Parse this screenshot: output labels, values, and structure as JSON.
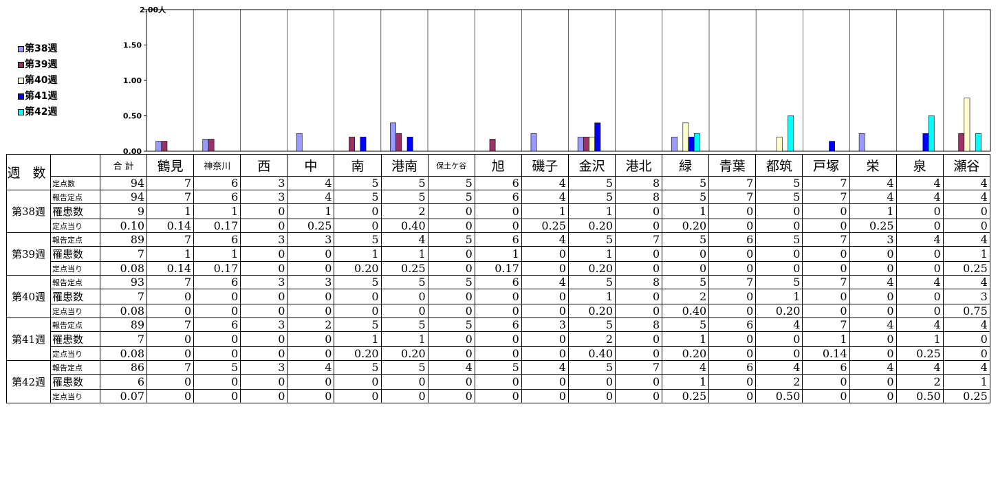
{
  "chart_data": {
    "type": "bar",
    "categories": [
      "鶴見",
      "神奈川",
      "西",
      "中",
      "南",
      "港南",
      "保土ケ谷",
      "旭",
      "磯子",
      "金沢",
      "港北",
      "緑",
      "青葉",
      "都筑",
      "戸塚",
      "栄",
      "泉",
      "瀬谷"
    ],
    "series": [
      {
        "name": "■第38週",
        "values": [
          0.14,
          0.17,
          0,
          0.25,
          0,
          0.4,
          0,
          0,
          0.25,
          0.2,
          0,
          0.2,
          0,
          0,
          0,
          0.25,
          0,
          0
        ]
      },
      {
        "name": "■第39週",
        "values": [
          0.14,
          0.17,
          0,
          0,
          0.2,
          0.25,
          0,
          0.17,
          0,
          0.2,
          0,
          0,
          0,
          0,
          0,
          0,
          0,
          0.25
        ]
      },
      {
        "name": "□第40週",
        "values": [
          0,
          0,
          0,
          0,
          0,
          0,
          0,
          0,
          0,
          0.2,
          0,
          0.4,
          0,
          0.2,
          0,
          0,
          0,
          0.75
        ]
      },
      {
        "name": "■第41週",
        "values": [
          0,
          0,
          0,
          0,
          0.2,
          0.2,
          0,
          0,
          0,
          0.4,
          0,
          0.2,
          0,
          0,
          0.14,
          0,
          0.25,
          0
        ]
      },
      {
        "name": "□第42週",
        "values": [
          0,
          0,
          0,
          0,
          0,
          0,
          0,
          0,
          0,
          0,
          0,
          0.25,
          0,
          0.5,
          0,
          0,
          0.5,
          0.25
        ]
      }
    ],
    "colors": [
      "#9999ff",
      "#993366",
      "#ffffcc",
      "#0000ff",
      "#00ffff"
    ],
    "ylim": [
      0,
      2.0
    ],
    "yticks": [
      "0.00",
      "0.50",
      "1.00",
      "1.50",
      "2.00"
    ],
    "unit": "人",
    "grid": "vertical-category-separators",
    "legend_placement": "left"
  },
  "table": {
    "corner": "週 数",
    "header": [
      "合 計",
      "鶴見",
      "神奈川",
      "西",
      "中",
      "南",
      "港南",
      "保土ケ谷",
      "旭",
      "磯子",
      "金沢",
      "港北",
      "緑",
      "青葉",
      "都筑",
      "戸塚",
      "栄",
      "泉",
      "瀬谷"
    ],
    "fixed_label": "定点数",
    "fixed_values": [
      "94",
      "7",
      "6",
      "3",
      "4",
      "5",
      "5",
      "5",
      "6",
      "4",
      "5",
      "8",
      "5",
      "7",
      "5",
      "7",
      "4",
      "4",
      "4"
    ],
    "row_labels": [
      "報告定点",
      "罹患数",
      "定点当り"
    ],
    "weeks": [
      {
        "label": "第38週",
        "rows": [
          [
            "94",
            "7",
            "6",
            "3",
            "4",
            "5",
            "5",
            "5",
            "6",
            "4",
            "5",
            "8",
            "5",
            "7",
            "5",
            "7",
            "4",
            "4",
            "4"
          ],
          [
            "9",
            "1",
            "1",
            "0",
            "1",
            "0",
            "2",
            "0",
            "0",
            "1",
            "1",
            "0",
            "1",
            "0",
            "0",
            "0",
            "1",
            "0",
            "0"
          ],
          [
            "0.10",
            "0.14",
            "0.17",
            "0",
            "0.25",
            "0",
            "0.40",
            "0",
            "0",
            "0.25",
            "0.20",
            "0",
            "0.20",
            "0",
            "0",
            "0",
            "0.25",
            "0",
            "0"
          ]
        ]
      },
      {
        "label": "第39週",
        "rows": [
          [
            "89",
            "7",
            "6",
            "3",
            "3",
            "5",
            "4",
            "5",
            "6",
            "4",
            "5",
            "7",
            "5",
            "6",
            "5",
            "7",
            "3",
            "4",
            "4"
          ],
          [
            "7",
            "1",
            "1",
            "0",
            "0",
            "1",
            "1",
            "0",
            "1",
            "0",
            "1",
            "0",
            "0",
            "0",
            "0",
            "0",
            "0",
            "0",
            "1"
          ],
          [
            "0.08",
            "0.14",
            "0.17",
            "0",
            "0",
            "0.20",
            "0.25",
            "0",
            "0.17",
            "0",
            "0.20",
            "0",
            "0",
            "0",
            "0",
            "0",
            "0",
            "0",
            "0.25"
          ]
        ]
      },
      {
        "label": "第40週",
        "rows": [
          [
            "93",
            "7",
            "6",
            "3",
            "3",
            "5",
            "5",
            "5",
            "6",
            "4",
            "5",
            "8",
            "5",
            "7",
            "5",
            "7",
            "4",
            "4",
            "4"
          ],
          [
            "7",
            "0",
            "0",
            "0",
            "0",
            "0",
            "0",
            "0",
            "0",
            "0",
            "1",
            "0",
            "2",
            "0",
            "1",
            "0",
            "0",
            "0",
            "3"
          ],
          [
            "0.08",
            "0",
            "0",
            "0",
            "0",
            "0",
            "0",
            "0",
            "0",
            "0",
            "0.20",
            "0",
            "0.40",
            "0",
            "0.20",
            "0",
            "0",
            "0",
            "0.75"
          ]
        ]
      },
      {
        "label": "第41週",
        "rows": [
          [
            "89",
            "7",
            "6",
            "3",
            "2",
            "5",
            "5",
            "5",
            "6",
            "3",
            "5",
            "8",
            "5",
            "6",
            "4",
            "7",
            "4",
            "4",
            "4"
          ],
          [
            "7",
            "0",
            "0",
            "0",
            "0",
            "1",
            "1",
            "0",
            "0",
            "0",
            "2",
            "0",
            "1",
            "0",
            "0",
            "1",
            "0",
            "1",
            "0"
          ],
          [
            "0.08",
            "0",
            "0",
            "0",
            "0",
            "0.20",
            "0.20",
            "0",
            "0",
            "0",
            "0.40",
            "0",
            "0.20",
            "0",
            "0",
            "0.14",
            "0",
            "0.25",
            "0"
          ]
        ]
      },
      {
        "label": "第42週",
        "rows": [
          [
            "86",
            "7",
            "5",
            "3",
            "4",
            "5",
            "5",
            "4",
            "5",
            "4",
            "5",
            "7",
            "4",
            "6",
            "4",
            "6",
            "4",
            "4",
            "4"
          ],
          [
            "6",
            "0",
            "0",
            "0",
            "0",
            "0",
            "0",
            "0",
            "0",
            "0",
            "0",
            "0",
            "1",
            "0",
            "2",
            "0",
            "0",
            "2",
            "1"
          ],
          [
            "0.07",
            "0",
            "0",
            "0",
            "0",
            "0",
            "0",
            "0",
            "0",
            "0",
            "0",
            "0",
            "0.25",
            "0",
            "0.50",
            "0",
            "0",
            "0.50",
            "0.25"
          ]
        ]
      }
    ]
  }
}
